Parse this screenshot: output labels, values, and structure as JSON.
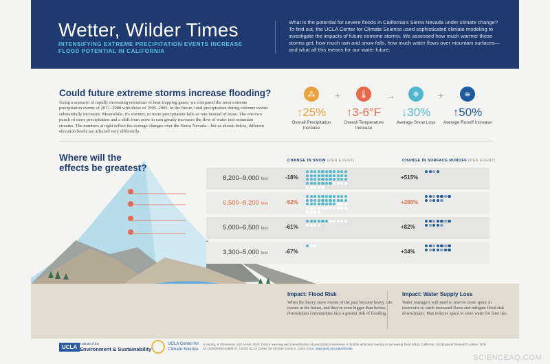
{
  "header": {
    "title": "Wetter, Wilder Times",
    "subtitle": "INTENSIFYING EXTREME PRECIPITATION EVENTS INCREASE FLOOD POTENTIAL IN CALIFORNIA",
    "intro": "What is the potential for severe floods in California's Sierra Nevada under climate change? To find out, the UCLA Center for Climate Science used sophisticated climate modeling to investigate the impacts of future extreme storms. We assessed how much warmer these storms get, how much rain and snow falls, how much water flows over mountain surfaces—and what all this means for our water future."
  },
  "question": {
    "title": "Could future extreme storms increase flooding?",
    "body": "Using a scenario of rapidly increasing emissions of heat-trapping gases, we compared the most extreme precipitation events of 2071–2080 with those of 1995–2005. In the future, total precipitation during extreme events substantially increases. Meanwhile, it's warmer, so more precipitation falls as rain instead of snow. The one-two punch of more precipitation and a shift from snow to rain greatly increases the flow of water into mountain streams. The numbers at right reflect the average changes over the Sierra Nevada—but as shown below, different elevation levels are affected very differently."
  },
  "stats": [
    {
      "value": "↑25%",
      "label": "Overall Precipitation Increase",
      "color": "#e9a23b"
    },
    {
      "value": "↑3-6°F",
      "label": "Overall Temperature Increase",
      "color": "#e46a4b"
    },
    {
      "value": "↓30%",
      "label": "Average Snow Loss",
      "color": "#4fb8cf"
    },
    {
      "value": "↑50%",
      "label": "Average Runoff Increase",
      "color": "#1e5aa0"
    }
  ],
  "operators": [
    "+",
    "→",
    "+"
  ],
  "where_title": "Where will the effects be greatest?",
  "columns": {
    "snow": "CHANGE IN SNOW",
    "runoff": "CHANGE IN SURFACE RUNOFF",
    "note": "(PER EVENT)"
  },
  "rows": [
    {
      "elevation": "8,200–9,000",
      "unit": "feet",
      "snow": "-18%",
      "runoff": "+515%",
      "snow_dots": 40,
      "snow_empty": 9,
      "runoff_dots": 4,
      "highlight": false
    },
    {
      "elevation": "6,500–8,200",
      "unit": "feet",
      "snow": "-52%",
      "runoff": "+265%",
      "snow_dots": 30,
      "snow_empty": 18,
      "runoff_dots": 12,
      "highlight": true
    },
    {
      "elevation": "5,000–6,500",
      "unit": "feet",
      "snow": "-61%",
      "runoff": "+82%",
      "snow_dots": 6,
      "snow_empty": 9,
      "runoff_dots": 12,
      "highlight": false
    },
    {
      "elevation": "3,300–5,000",
      "unit": "feet",
      "snow": "-67%",
      "runoff": "+34%",
      "snow_dots": 1,
      "snow_empty": 2,
      "runoff_dots": 14,
      "highlight": false
    }
  ],
  "impacts": [
    {
      "title": "Impact: Flood Risk",
      "body": "When the heavy snow events of the past become heavy rain events in the future, and they're even bigger than before, downstream communities face a greater risk of flooding."
    },
    {
      "title": "Impact: Water Supply Loss",
      "body": "Water managers will need to reserve more space in reservoirs to catch increased flows and mitigate flood risk downstream. That reduces space to store water for later use."
    }
  ],
  "footer": {
    "ucla": "UCLA",
    "ioes_small": "Institute of the",
    "ioes": "Environment & Sustainability",
    "ccs1": "UCLA Center for",
    "ccs2": "Climate Science",
    "citation": "X Huang, S Stevenson, and A Hall. 2020. Future warming and intensification of precipitation extremes: A 'double whammy' leading to increasing flood risk in California. Geophysical Research Letters. DOI: 10.1029/2020GL088679.   ©2020 UCLA Center for Climate Science.   Learn more:",
    "link": "www.ioes.ucla.edu/climate"
  },
  "watermark": "SCIENCEAQ.COM"
}
